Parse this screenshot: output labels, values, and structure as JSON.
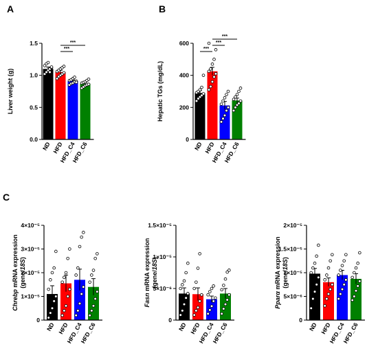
{
  "palette": {
    "ND": "#000000",
    "HFD": "#ff0000",
    "HFD_C4": "#0000ff",
    "HFD_C6": "#008000"
  },
  "chart_data": [
    {
      "id": "A",
      "panel_letter": "A",
      "type": "bar",
      "categories": [
        "ND",
        "HFD",
        "HFD_C4",
        "HFD_C6"
      ],
      "values": [
        1.1,
        1.05,
        0.91,
        0.87
      ],
      "errors": [
        0.03,
        0.03,
        0.02,
        0.02
      ],
      "points": [
        [
          1.02,
          1.05,
          1.08,
          1.1,
          1.12,
          1.15,
          1.18,
          1.2,
          1.05,
          1.13
        ],
        [
          0.95,
          0.98,
          1.0,
          1.02,
          1.04,
          1.06,
          1.08,
          1.1,
          1.12,
          1.14
        ],
        [
          0.85,
          0.87,
          0.88,
          0.9,
          0.91,
          0.92,
          0.93,
          0.95,
          0.97,
          0.89
        ],
        [
          0.8,
          0.82,
          0.84,
          0.85,
          0.86,
          0.88,
          0.89,
          0.9,
          0.92,
          0.94
        ]
      ],
      "ylabel": "Liver weight (g)",
      "ylim": [
        0,
        1.5
      ],
      "yticks": [
        0.0,
        0.5,
        1.0,
        1.5
      ],
      "ytick_labels": [
        "0.0",
        "0.5",
        "1.0",
        "1.5"
      ],
      "significance": [
        {
          "from": 1,
          "to": 2,
          "label": "***"
        },
        {
          "from": 1,
          "to": 3,
          "label": "***"
        }
      ]
    },
    {
      "id": "B",
      "panel_letter": "B",
      "type": "bar",
      "categories": [
        "ND",
        "HFD",
        "HFD_C4",
        "HFD_C6"
      ],
      "values": [
        290,
        425,
        212,
        243
      ],
      "errors": [
        15,
        25,
        25,
        15
      ],
      "points": [
        [
          240,
          255,
          265,
          275,
          285,
          292,
          300,
          310,
          325,
          400
        ],
        [
          310,
          330,
          360,
          390,
          410,
          425,
          440,
          470,
          500,
          560,
          600
        ],
        [
          110,
          130,
          150,
          180,
          200,
          220,
          240,
          260,
          280,
          300
        ],
        [
          180,
          200,
          215,
          225,
          240,
          250,
          265,
          280,
          300,
          320
        ]
      ],
      "ylabel": "Hepatic TGs (mg/dL)",
      "ylim": [
        0,
        600
      ],
      "yticks": [
        0,
        200,
        400,
        600
      ],
      "ytick_labels": [
        "0",
        "200",
        "400",
        "600"
      ],
      "significance": [
        {
          "from": 0,
          "to": 1,
          "label": "***"
        },
        {
          "from": 1,
          "to": 2,
          "label": "***"
        },
        {
          "from": 1,
          "to": 3,
          "label": "***"
        }
      ]
    },
    {
      "id": "C1",
      "panel_letter": "C",
      "type": "bar",
      "categories": [
        "ND",
        "HFD",
        "HFD_C4",
        "HFD_C6"
      ],
      "values": [
        1.1e-05,
        1.55e-05,
        1.7e-05,
        1.4e-05
      ],
      "errors": [
        3.5e-06,
        3.5e-06,
        4.5e-06,
        3.5e-06
      ],
      "points": [
        [
          1e-06,
          3e-06,
          5e-06,
          8e-06,
          1e-05,
          1.3e-05,
          1.7e-05,
          2e-05,
          2.2e-05,
          2.9e-05
        ],
        [
          2e-06,
          4e-06,
          6e-06,
          1e-05,
          1.3e-05,
          1.6e-05,
          1.8e-05,
          2e-05,
          2.6e-05,
          3e-05
        ],
        [
          2e-06,
          4e-06,
          7e-06,
          1.1e-05,
          1.4e-05,
          1.9e-05,
          2.2e-05,
          3.1e-05,
          3.5e-05,
          3.7e-05
        ],
        [
          2e-06,
          4e-06,
          6e-06,
          9e-06,
          1.2e-05,
          1.6e-05,
          1.9e-05,
          2.1e-05,
          2.6e-05,
          2.8e-05
        ]
      ],
      "ylabel_gene": "Chrebp",
      "ylabel_rest": " mRNA expression",
      "ylabel_line2_open": "(gene/",
      "ylabel_line2_italic": "18S",
      "ylabel_line2_close": ")",
      "ylim": [
        0,
        4e-05
      ],
      "yticks": [
        0,
        1e-05,
        2e-05,
        3e-05,
        4e-05
      ],
      "ytick_labels": [
        "0",
        "1×10⁻⁵",
        "2×10⁻⁵",
        "3×10⁻⁵",
        "4×10⁻⁵"
      ],
      "significance": []
    },
    {
      "id": "C2",
      "panel_letter": "",
      "type": "bar",
      "categories": [
        "ND",
        "HFD",
        "HFD_C4",
        "HFD_C6"
      ],
      "values": [
        4.2e-06,
        4.1e-06,
        3.3e-06,
        4.2e-06
      ],
      "errors": [
        9e-07,
        1e-06,
        5e-07,
        8e-07
      ],
      "points": [
        [
          8e-07,
          1.5e-06,
          2.5e-06,
          3.5e-06,
          4.2e-06,
          5e-06,
          5.6e-06,
          6.2e-06,
          7.5e-06,
          9e-06
        ],
        [
          8e-07,
          1.5e-06,
          2e-06,
          3e-06,
          4e-06,
          5e-06,
          6e-06,
          8.2e-06,
          1.05e-05
        ],
        [
          1e-06,
          1.6e-06,
          2.2e-06,
          3e-06,
          3.5e-06,
          4e-06,
          4.5e-06,
          5e-06,
          5.4e-06
        ],
        [
          1e-06,
          1.8e-06,
          2.5e-06,
          3.2e-06,
          4e-06,
          4.8e-06,
          5.5e-06,
          6.5e-06,
          7.6e-06,
          7.9e-06
        ]
      ],
      "ylabel_gene": "Fasn",
      "ylabel_rest": " mRNA expression",
      "ylabel_line2_open": "(gene/",
      "ylabel_line2_italic": "18S",
      "ylabel_line2_close": ")",
      "ylim": [
        0,
        1.5e-05
      ],
      "yticks": [
        0,
        5e-06,
        1e-05,
        1.5e-05
      ],
      "ytick_labels": [
        "0",
        "5×10⁻⁶",
        "1×10⁻⁵",
        "1.5×10⁻⁵"
      ],
      "significance": []
    },
    {
      "id": "C3",
      "panel_letter": "",
      "type": "bar",
      "categories": [
        "ND",
        "HFD",
        "HFD_C4",
        "HFD_C6"
      ],
      "values": [
        9.8e-06,
        8e-06,
        9.5e-06,
        8.7e-06
      ],
      "errors": [
        1.1e-06,
        9e-07,
        1e-06,
        1.1e-06
      ],
      "points": [
        [
          2.5e-06,
          4.5e-06,
          6e-06,
          7.5e-06,
          9e-06,
          1e-05,
          1.1e-05,
          1.2e-05,
          1.35e-05,
          1.58e-05
        ],
        [
          3e-06,
          4.5e-06,
          5.5e-06,
          6.5e-06,
          7.5e-06,
          8.5e-06,
          9.5e-06,
          1.1e-05,
          1.25e-05,
          1.38e-05
        ],
        [
          4.5e-06,
          5.5e-06,
          6.5e-06,
          7.5e-06,
          8.5e-06,
          9.5e-06,
          1.05e-05,
          1.15e-05,
          1.25e-05,
          1.38e-05
        ],
        [
          4.2e-06,
          5e-06,
          6.2e-06,
          7.2e-06,
          8.2e-06,
          9e-06,
          1e-05,
          1.1e-05,
          1.2e-05,
          1.42e-05
        ]
      ],
      "ylabel_gene": "Pparα",
      "ylabel_rest": " mRNA expression",
      "ylabel_line2_open": "(gene/",
      "ylabel_line2_italic": "18S",
      "ylabel_line2_close": ")",
      "ylim": [
        0,
        2e-05
      ],
      "yticks": [
        0,
        5e-06,
        1e-05,
        1.5e-05,
        2e-05
      ],
      "ytick_labels": [
        "0",
        "5×10⁻⁶",
        "1×10⁻⁵",
        "1.5×10⁻⁵",
        "2×10⁻⁵"
      ],
      "significance": []
    }
  ]
}
